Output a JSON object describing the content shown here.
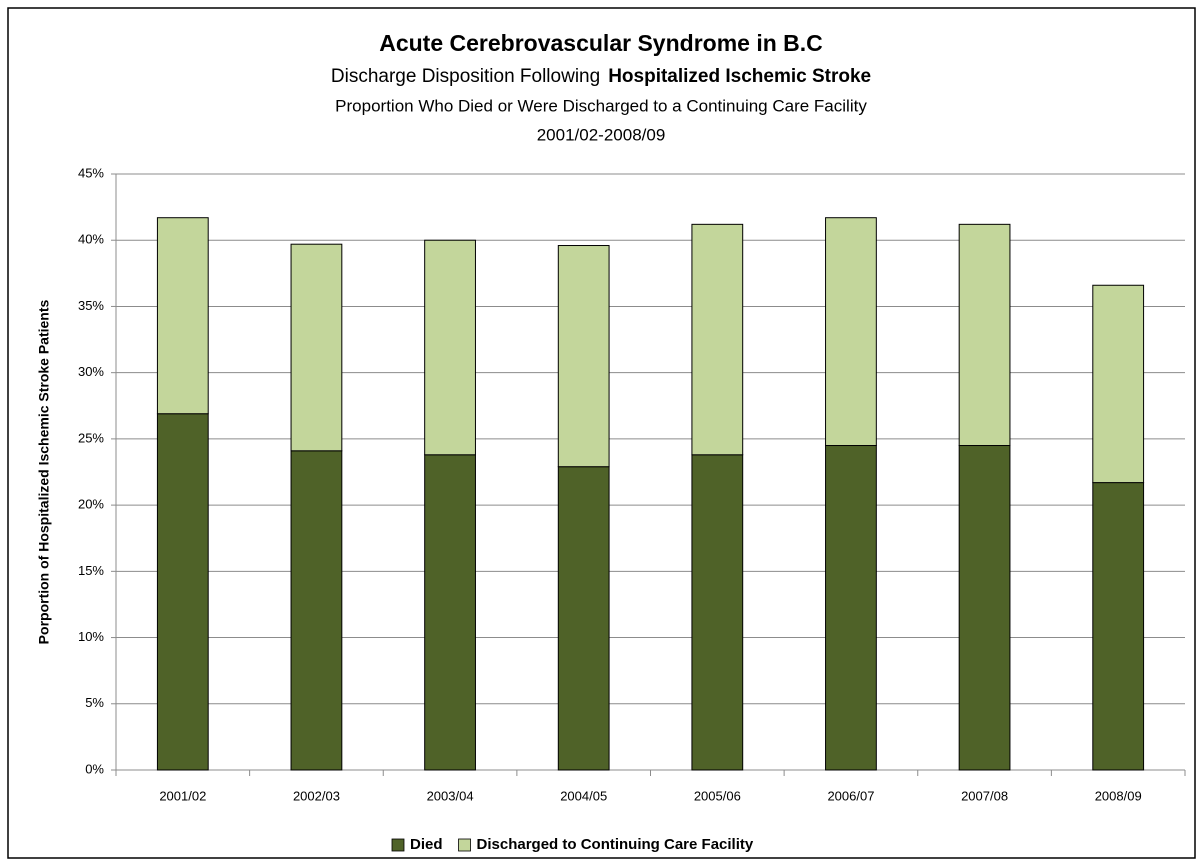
{
  "chart_data": {
    "type": "stacked_bar",
    "title": "Acute Cerebrovascular Syndrome in B.C",
    "subtitle_lead": "Discharge Disposition Following",
    "subtitle_bold": "Hospitalized Ischemic Stroke",
    "subtitle_2": "Proportion Who Died or Were Discharged to a Continuing Care Facility",
    "subtitle_3": "2001/02-2008/09",
    "y_label": "Porportion of Hospitalized Ischemic Stroke Patients",
    "categories": [
      "2001/02",
      "2002/03",
      "2003/04",
      "2004/05",
      "2005/06",
      "2006/07",
      "2007/08",
      "2008/09"
    ],
    "series": [
      {
        "name": "Died",
        "color": "#4f6228",
        "values": [
          26.9,
          24.1,
          23.8,
          22.9,
          23.8,
          24.5,
          24.5,
          21.7
        ]
      },
      {
        "name": "Discharged to Continuing Care Facility",
        "color": "#c3d69b",
        "values": [
          14.8,
          15.6,
          16.2,
          16.7,
          17.4,
          17.2,
          16.7,
          14.9
        ]
      }
    ],
    "ylim": [
      0,
      45
    ],
    "yticks": [
      {
        "value": 0,
        "label": "0%"
      },
      {
        "value": 5,
        "label": "5%"
      },
      {
        "value": 10,
        "label": "10%"
      },
      {
        "value": 15,
        "label": "15%"
      },
      {
        "value": 20,
        "label": "20%"
      },
      {
        "value": 25,
        "label": "25%"
      },
      {
        "value": 30,
        "label": "30%"
      },
      {
        "value": 35,
        "label": "35%"
      },
      {
        "value": 40,
        "label": "40%"
      },
      {
        "value": 45,
        "label": "45%"
      }
    ],
    "grid": true,
    "legend": "bottom"
  }
}
